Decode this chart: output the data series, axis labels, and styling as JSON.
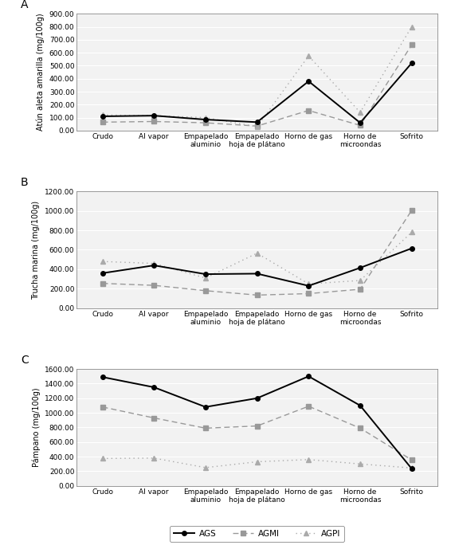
{
  "categories": [
    "Crudo",
    "Al vapor",
    "Empapelado\naluminio",
    "Empapelado\nhoja de plátano",
    "Horno de gas",
    "Horno de\nmicroondas",
    "Sofrito"
  ],
  "panel_A": {
    "title": "A",
    "ylabel": "Atún aleta amarilla (mg/100g)",
    "ylim": [
      0,
      900
    ],
    "yticks": [
      0.0,
      100.0,
      200.0,
      300.0,
      400.0,
      500.0,
      600.0,
      700.0,
      800.0,
      900.0
    ],
    "AGS": [
      110,
      115,
      85,
      65,
      380,
      60,
      520
    ],
    "AGMI": [
      65,
      70,
      60,
      35,
      155,
      40,
      660
    ],
    "AGPI": [
      120,
      115,
      100,
      30,
      575,
      140,
      800
    ]
  },
  "panel_B": {
    "title": "B",
    "ylabel": "Trucha marina (mg/100g)",
    "ylim": [
      0,
      1200
    ],
    "yticks": [
      0.0,
      200.0,
      400.0,
      600.0,
      800.0,
      1000.0,
      1200.0
    ],
    "AGS": [
      360,
      440,
      350,
      355,
      230,
      415,
      615
    ],
    "AGMI": [
      255,
      235,
      180,
      135,
      150,
      195,
      1005
    ],
    "AGPI": [
      480,
      460,
      310,
      565,
      250,
      285,
      780
    ]
  },
  "panel_C": {
    "title": "C",
    "ylabel": "Pámpano (mg/100g)",
    "ylim": [
      0,
      1600
    ],
    "yticks": [
      0.0,
      200.0,
      400.0,
      600.0,
      800.0,
      1000.0,
      1200.0,
      1400.0,
      1600.0
    ],
    "AGS": [
      1490,
      1350,
      1080,
      1200,
      1500,
      1100,
      235
    ],
    "AGMI": [
      1080,
      930,
      790,
      820,
      1090,
      790,
      355
    ],
    "AGPI": [
      375,
      380,
      250,
      330,
      360,
      300,
      245
    ]
  },
  "line_AGS_color": "#000000",
  "line_AGMI_color": "#999999",
  "line_AGPI_color": "#aaaaaa",
  "bg_color": "#f2f2f2",
  "legend_labels": [
    "AGS",
    "AGMI",
    "AGPI"
  ],
  "fig_width": 5.66,
  "fig_height": 6.89
}
